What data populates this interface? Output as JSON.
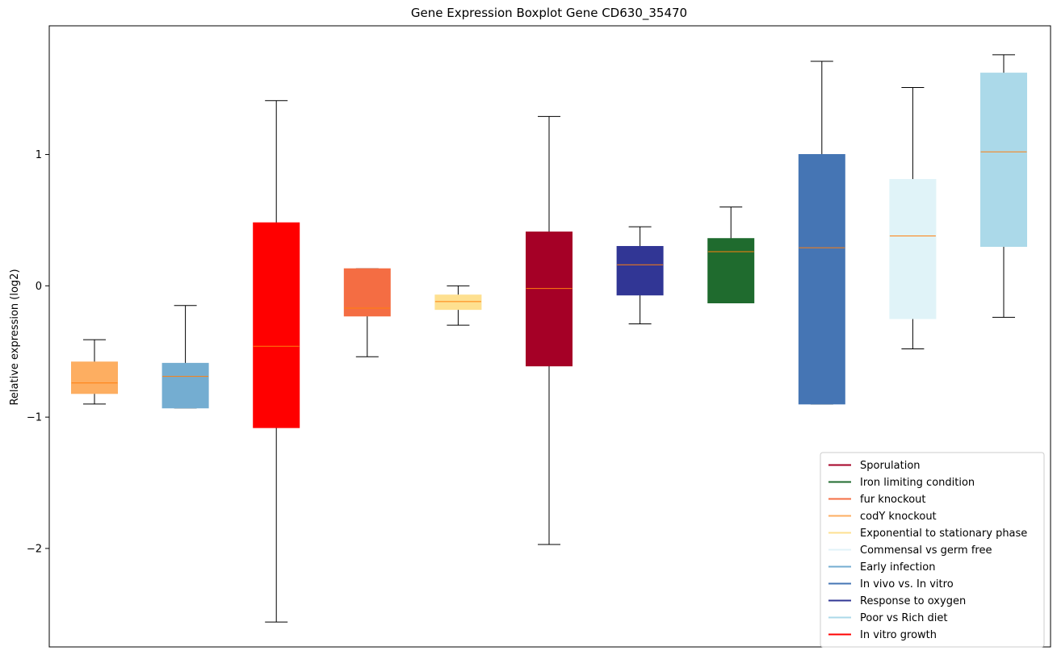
{
  "chart_data": {
    "type": "boxplot",
    "title": "Gene Expression Boxplot Gene CD630_35470",
    "xlabel": "",
    "ylabel": "Relative expression (log2)",
    "ylim": [
      -2.75,
      1.98
    ],
    "yticks": [
      -2,
      -1,
      0,
      1
    ],
    "ytick_labels": [
      "−2",
      "−1",
      "0",
      "1"
    ],
    "median_color": "#ff7f0e",
    "legend_position": "lower-right",
    "boxes": [
      {
        "name": "codY knockout",
        "color": "#fdae61",
        "whisker_low": -0.9,
        "q1": -0.82,
        "median": -0.74,
        "q3": -0.58,
        "whisker_high": -0.41
      },
      {
        "name": "Early infection",
        "color": "#74add1",
        "whisker_low": -0.93,
        "q1": -0.93,
        "median": -0.69,
        "q3": -0.59,
        "whisker_high": -0.15
      },
      {
        "name": "In vitro growth",
        "color": "#ff0000",
        "whisker_low": -2.56,
        "q1": -1.08,
        "median": -0.46,
        "q3": 0.48,
        "whisker_high": 1.41
      },
      {
        "name": "fur knockout",
        "color": "#f46d43",
        "whisker_low": -0.54,
        "q1": -0.23,
        "median": -0.17,
        "q3": 0.13,
        "whisker_high": 0.13
      },
      {
        "name": "Exponential to stationary phase",
        "color": "#fee090",
        "whisker_low": -0.3,
        "q1": -0.18,
        "median": -0.12,
        "q3": -0.07,
        "whisker_high": 0.0
      },
      {
        "name": "Sporulation",
        "color": "#a50026",
        "whisker_low": -1.97,
        "q1": -0.61,
        "median": -0.02,
        "q3": 0.41,
        "whisker_high": 1.29
      },
      {
        "name": "Response to oxygen",
        "color": "#313695",
        "whisker_low": -0.29,
        "q1": -0.07,
        "median": 0.16,
        "q3": 0.3,
        "whisker_high": 0.45
      },
      {
        "name": "Iron limiting condition",
        "color": "#1f6b2e",
        "whisker_low": -0.13,
        "q1": -0.13,
        "median": 0.26,
        "q3": 0.36,
        "whisker_high": 0.6
      },
      {
        "name": "In vivo vs. In vitro",
        "color": "#4575b4",
        "whisker_low": -0.9,
        "q1": -0.9,
        "median": 0.29,
        "q3": 1.0,
        "whisker_high": 1.71
      },
      {
        "name": "Commensal vs germ free",
        "color": "#e0f3f8",
        "whisker_low": -0.48,
        "q1": -0.25,
        "median": 0.38,
        "q3": 0.81,
        "whisker_high": 1.51
      },
      {
        "name": "Poor vs Rich diet",
        "color": "#abd9e9",
        "whisker_low": -0.24,
        "q1": 0.3,
        "median": 1.02,
        "q3": 1.62,
        "whisker_high": 1.76
      }
    ],
    "legend": [
      {
        "label": "Sporulation",
        "color": "#a50026"
      },
      {
        "label": "Iron limiting condition",
        "color": "#1f6b2e"
      },
      {
        "label": "fur knockout",
        "color": "#f46d43"
      },
      {
        "label": "codY knockout",
        "color": "#fdae61"
      },
      {
        "label": "Exponential to stationary phase",
        "color": "#fee090"
      },
      {
        "label": "Commensal vs germ free",
        "color": "#e0f3f8"
      },
      {
        "label": "Early infection",
        "color": "#74add1"
      },
      {
        "label": "In vivo vs. In vitro",
        "color": "#4575b4"
      },
      {
        "label": "Response to oxygen",
        "color": "#313695"
      },
      {
        "label": "Poor vs Rich diet",
        "color": "#abd9e9"
      },
      {
        "label": "In vitro growth",
        "color": "#ff0000"
      }
    ]
  }
}
